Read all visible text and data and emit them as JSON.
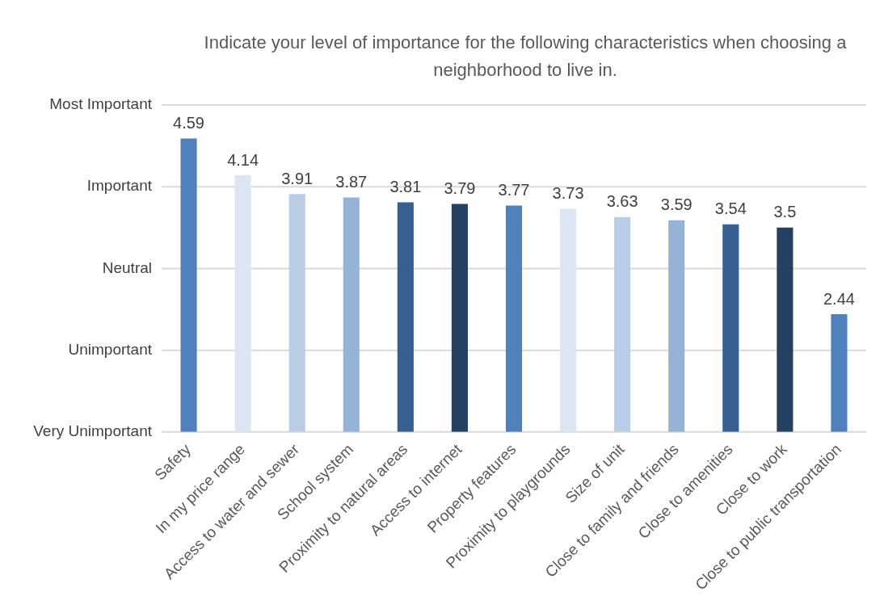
{
  "chart_data": {
    "type": "bar",
    "title": "Indicate your level of importance for the following characteristics when choosing a neighborhood to live in.",
    "categories": [
      "Safety",
      "In my price range",
      "Access to water and sewer",
      "School system",
      "Proximity to natural areas",
      "Access to internet",
      "Property features",
      "Proximity to playgrounds",
      "Size of unit",
      "Close to family and friends",
      "Close to amenities",
      "Close to work",
      "Close to public transportation"
    ],
    "values": [
      4.59,
      4.14,
      3.91,
      3.87,
      3.81,
      3.79,
      3.77,
      3.73,
      3.63,
      3.59,
      3.54,
      3.5,
      2.44
    ],
    "colors": [
      "#4f81bd",
      "#dce6f2",
      "#b9cde5",
      "#95b3d7",
      "#376092",
      "#254061",
      "#4f81bd",
      "#dce6f2",
      "#b9cde5",
      "#95b3d7",
      "#376092",
      "#254061",
      "#4f81bd"
    ],
    "ylim": [
      1,
      5
    ],
    "ref_lines": [
      {
        "axis": "y",
        "value": 1,
        "label": "Very Unimportant",
        "color": "#d9d9d9"
      },
      {
        "axis": "y",
        "value": 2,
        "label": "Unimportant",
        "color": "#d9d9d9"
      },
      {
        "axis": "y",
        "value": 3,
        "label": "Neutral",
        "color": "#d9d9d9"
      },
      {
        "axis": "y",
        "value": 4,
        "label": "Important",
        "color": "#d9d9d9"
      },
      {
        "axis": "y",
        "value": 5,
        "label": "Most Important",
        "color": "#d9d9d9"
      }
    ],
    "data_labels": true
  }
}
